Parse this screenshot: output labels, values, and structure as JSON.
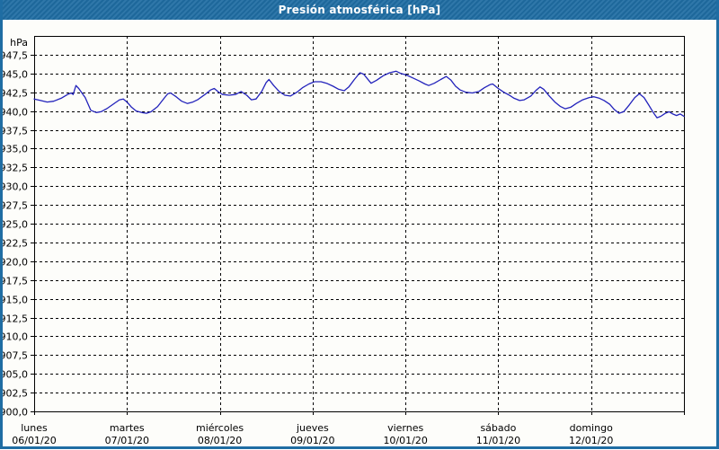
{
  "window": {
    "title": "Presión atmosférica [hPa]",
    "title_bg": "#1f6da3",
    "frame_color": "#1f6da3",
    "background": "#fdfdfa"
  },
  "chart_data": {
    "type": "line",
    "title": "Presión atmosférica [hPa]",
    "ylabel": "hPa",
    "xlabel": "",
    "ylim": [
      900,
      950
    ],
    "grid": "dashed",
    "legend": "none",
    "line_color": "#2222bb",
    "grid_color": "#000000",
    "y_ticks": [
      {
        "value": 947.5,
        "label": "947,5"
      },
      {
        "value": 945.0,
        "label": "945,0"
      },
      {
        "value": 942.5,
        "label": "942,5"
      },
      {
        "value": 940.0,
        "label": "940,0"
      },
      {
        "value": 937.5,
        "label": "937,5"
      },
      {
        "value": 935.0,
        "label": "935,0"
      },
      {
        "value": 932.5,
        "label": "932,5"
      },
      {
        "value": 930.0,
        "label": "930,0"
      },
      {
        "value": 927.5,
        "label": "927,5"
      },
      {
        "value": 925.0,
        "label": "925,0"
      },
      {
        "value": 922.5,
        "label": "922,5"
      },
      {
        "value": 920.0,
        "label": "920,0"
      },
      {
        "value": 917.5,
        "label": "917,5"
      },
      {
        "value": 915.0,
        "label": "915,0"
      },
      {
        "value": 912.5,
        "label": "912,5"
      },
      {
        "value": 910.0,
        "label": "910,0"
      },
      {
        "value": 907.5,
        "label": "907,5"
      },
      {
        "value": 905.0,
        "label": "905,0"
      },
      {
        "value": 902.5,
        "label": "902,5"
      },
      {
        "value": 900.0,
        "label": "900,0"
      }
    ],
    "x_days": [
      {
        "name": "lunes",
        "date": "06/01/20"
      },
      {
        "name": "martes",
        "date": "07/01/20"
      },
      {
        "name": "miércoles",
        "date": "08/01/20"
      },
      {
        "name": "jueves",
        "date": "09/01/20"
      },
      {
        "name": "viernes",
        "date": "10/01/20"
      },
      {
        "name": "sábado",
        "date": "11/01/20"
      },
      {
        "name": "domingo",
        "date": "12/01/20"
      }
    ],
    "series": [
      {
        "name": "Presión atmosférica",
        "unit": "hPa",
        "points": [
          [
            0.0,
            941.6
          ],
          [
            0.07,
            941.4
          ],
          [
            0.14,
            941.2
          ],
          [
            0.21,
            941.3
          ],
          [
            0.29,
            941.7
          ],
          [
            0.36,
            942.2
          ],
          [
            0.4,
            942.4
          ],
          [
            0.42,
            942.2
          ],
          [
            0.45,
            943.4
          ],
          [
            0.48,
            943.0
          ],
          [
            0.55,
            941.8
          ],
          [
            0.61,
            940.1
          ],
          [
            0.67,
            939.8
          ],
          [
            0.72,
            939.9
          ],
          [
            0.78,
            940.3
          ],
          [
            0.85,
            940.9
          ],
          [
            0.92,
            941.5
          ],
          [
            0.96,
            941.6
          ],
          [
            1.0,
            941.2
          ],
          [
            1.05,
            940.5
          ],
          [
            1.1,
            940.0
          ],
          [
            1.16,
            939.8
          ],
          [
            1.21,
            939.7
          ],
          [
            1.26,
            939.9
          ],
          [
            1.33,
            940.6
          ],
          [
            1.4,
            941.7
          ],
          [
            1.44,
            942.3
          ],
          [
            1.47,
            942.4
          ],
          [
            1.53,
            941.9
          ],
          [
            1.59,
            941.3
          ],
          [
            1.65,
            941.0
          ],
          [
            1.71,
            941.2
          ],
          [
            1.76,
            941.5
          ],
          [
            1.84,
            942.2
          ],
          [
            1.9,
            942.8
          ],
          [
            1.94,
            943.0
          ],
          [
            1.99,
            942.5
          ],
          [
            2.03,
            942.2
          ],
          [
            2.1,
            942.1
          ],
          [
            2.17,
            942.2
          ],
          [
            2.23,
            942.6
          ],
          [
            2.29,
            942.1
          ],
          [
            2.34,
            941.5
          ],
          [
            2.39,
            941.6
          ],
          [
            2.45,
            942.6
          ],
          [
            2.5,
            943.8
          ],
          [
            2.53,
            944.2
          ],
          [
            2.58,
            943.4
          ],
          [
            2.64,
            942.6
          ],
          [
            2.7,
            942.1
          ],
          [
            2.76,
            942.0
          ],
          [
            2.83,
            942.5
          ],
          [
            2.89,
            943.1
          ],
          [
            2.96,
            943.6
          ],
          [
            3.02,
            943.9
          ],
          [
            3.09,
            943.9
          ],
          [
            3.15,
            943.7
          ],
          [
            3.22,
            943.3
          ],
          [
            3.28,
            942.9
          ],
          [
            3.34,
            942.7
          ],
          [
            3.39,
            943.2
          ],
          [
            3.45,
            944.2
          ],
          [
            3.51,
            945.1
          ],
          [
            3.55,
            944.9
          ],
          [
            3.59,
            944.3
          ],
          [
            3.63,
            943.7
          ],
          [
            3.69,
            944.1
          ],
          [
            3.76,
            944.7
          ],
          [
            3.83,
            945.1
          ],
          [
            3.9,
            945.3
          ],
          [
            3.95,
            945.0
          ],
          [
            4.01,
            944.8
          ],
          [
            4.08,
            944.4
          ],
          [
            4.15,
            944.0
          ],
          [
            4.21,
            943.6
          ],
          [
            4.25,
            943.4
          ],
          [
            4.31,
            943.7
          ],
          [
            4.38,
            944.2
          ],
          [
            4.44,
            944.6
          ],
          [
            4.49,
            944.1
          ],
          [
            4.54,
            943.3
          ],
          [
            4.59,
            942.8
          ],
          [
            4.65,
            942.5
          ],
          [
            4.72,
            942.4
          ],
          [
            4.79,
            942.6
          ],
          [
            4.85,
            943.1
          ],
          [
            4.91,
            943.5
          ],
          [
            4.94,
            943.6
          ],
          [
            5.0,
            943.0
          ],
          [
            5.06,
            942.5
          ],
          [
            5.12,
            942.1
          ],
          [
            5.17,
            941.7
          ],
          [
            5.23,
            941.4
          ],
          [
            5.28,
            941.5
          ],
          [
            5.35,
            942.0
          ],
          [
            5.41,
            942.8
          ],
          [
            5.45,
            943.2
          ],
          [
            5.49,
            942.9
          ],
          [
            5.55,
            942.0
          ],
          [
            5.61,
            941.2
          ],
          [
            5.67,
            940.6
          ],
          [
            5.72,
            940.3
          ],
          [
            5.78,
            940.5
          ],
          [
            5.84,
            941.0
          ],
          [
            5.91,
            941.5
          ],
          [
            5.98,
            941.8
          ],
          [
            6.03,
            941.9
          ],
          [
            6.09,
            941.7
          ],
          [
            6.14,
            941.4
          ],
          [
            6.2,
            940.9
          ],
          [
            6.25,
            940.2
          ],
          [
            6.3,
            939.7
          ],
          [
            6.35,
            939.9
          ],
          [
            6.41,
            940.8
          ],
          [
            6.47,
            941.8
          ],
          [
            6.52,
            942.3
          ],
          [
            6.57,
            941.8
          ],
          [
            6.62,
            940.8
          ],
          [
            6.67,
            939.8
          ],
          [
            6.71,
            939.1
          ],
          [
            6.75,
            939.3
          ],
          [
            6.8,
            939.7
          ],
          [
            6.84,
            939.9
          ],
          [
            6.88,
            939.6
          ],
          [
            6.92,
            939.4
          ],
          [
            6.96,
            939.6
          ],
          [
            7.0,
            939.3
          ]
        ]
      }
    ]
  }
}
